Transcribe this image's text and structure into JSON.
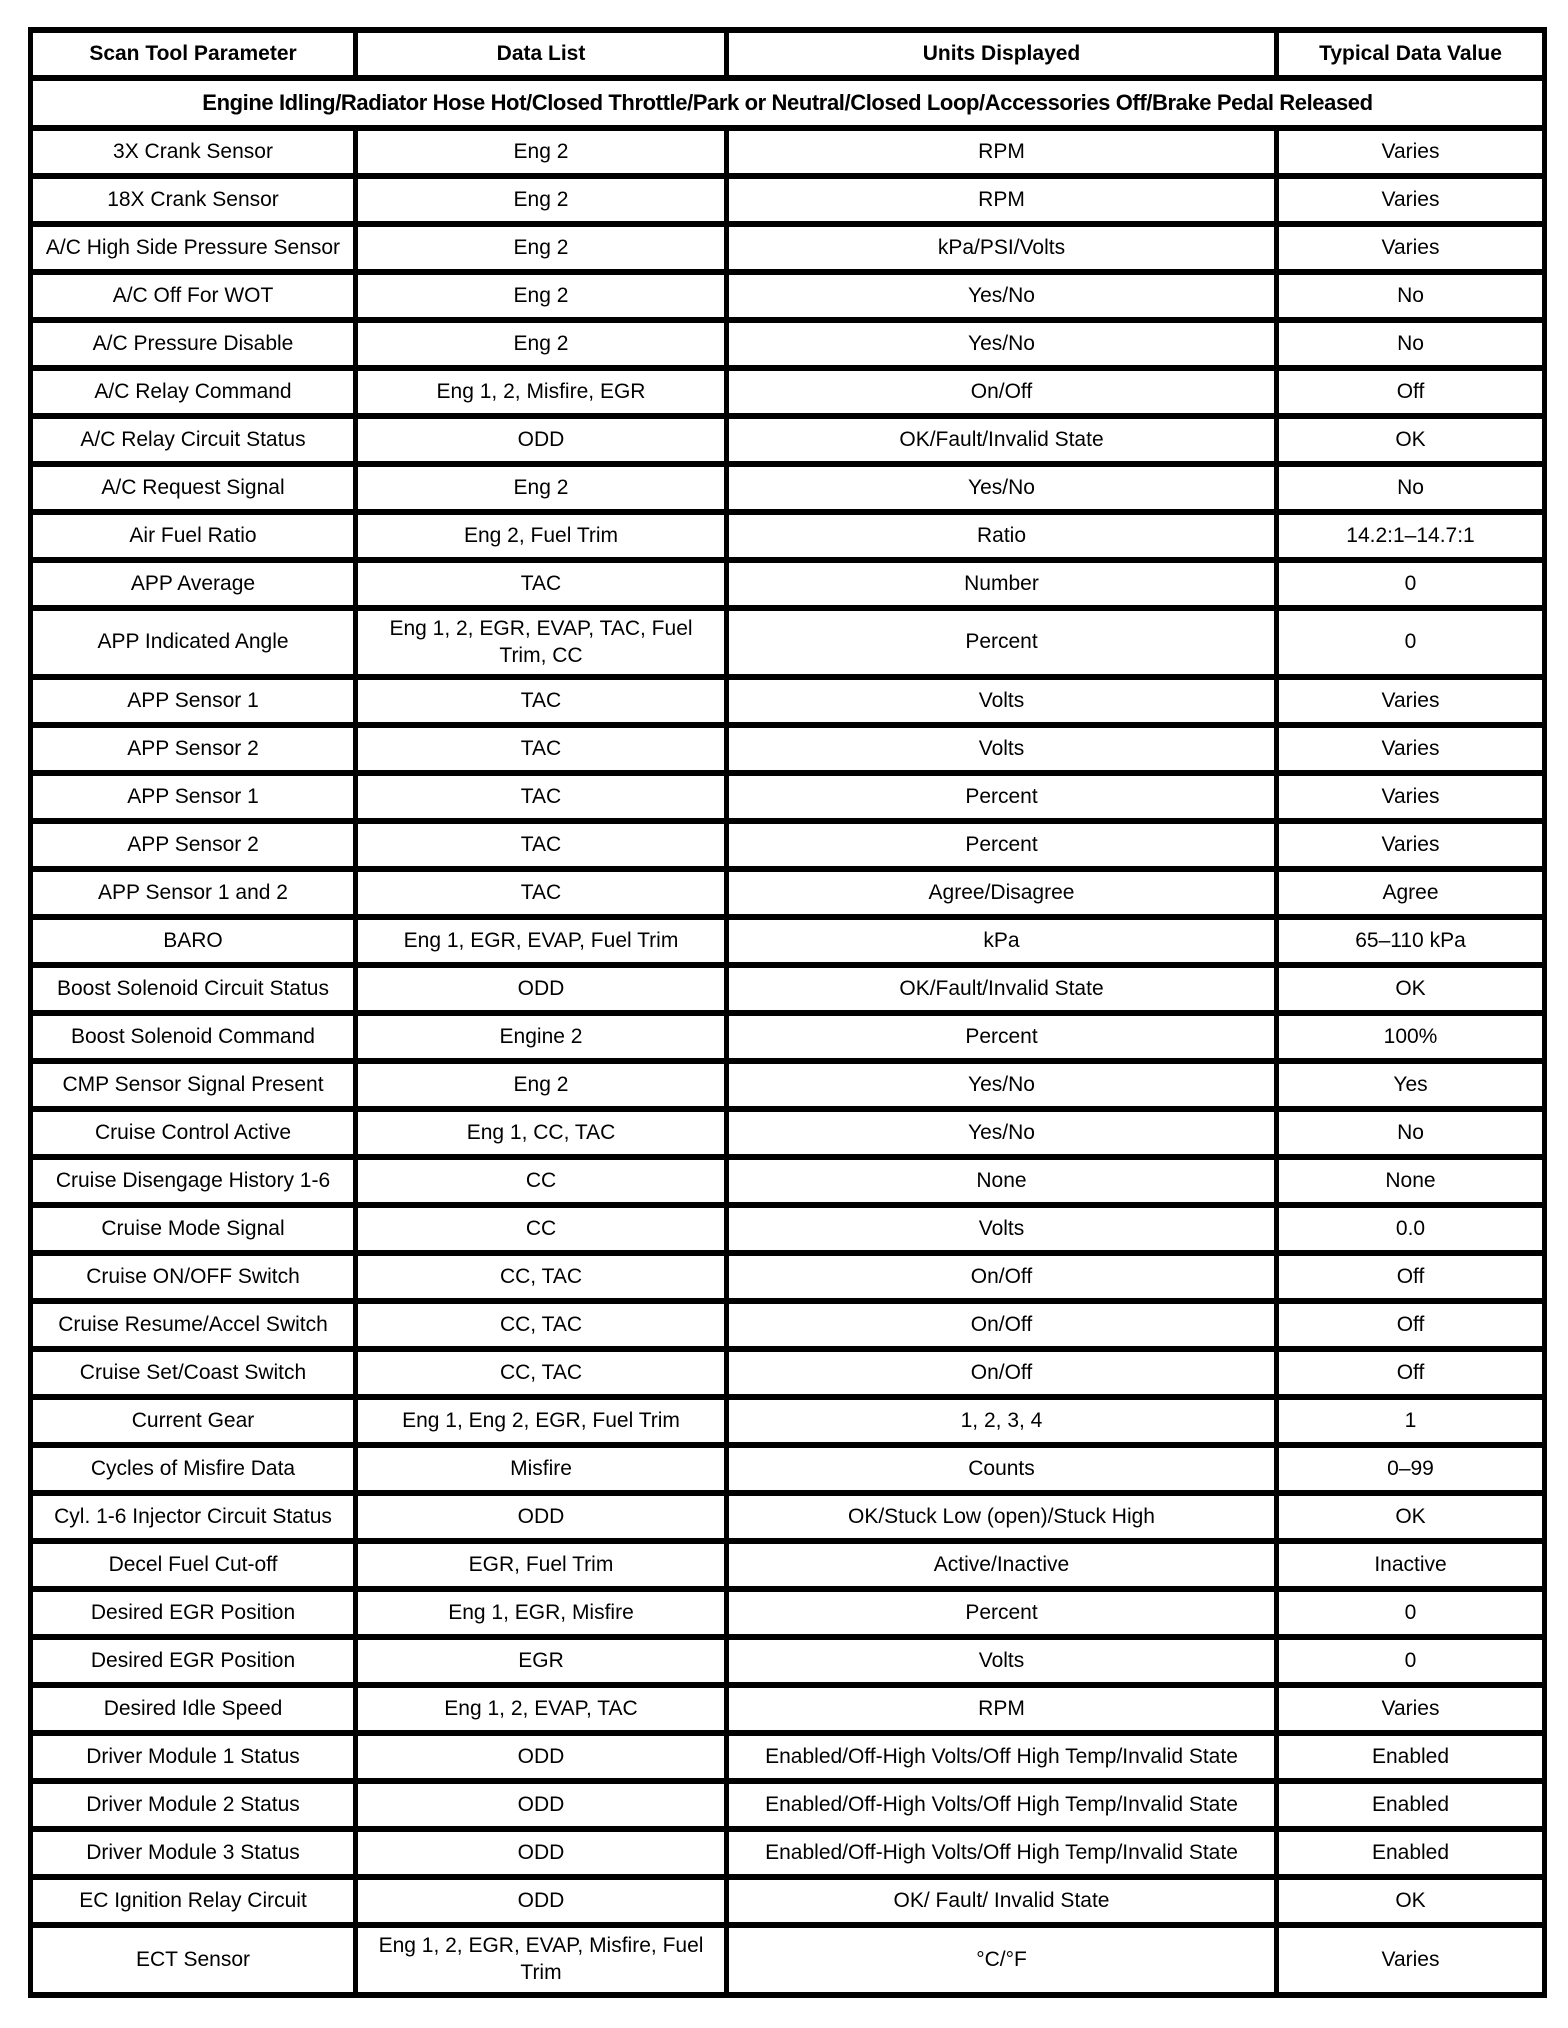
{
  "table": {
    "columns": [
      "Scan Tool Parameter",
      "Data List",
      "Units Displayed",
      "Typical Data Value"
    ],
    "condition": "Engine Idling/Radiator Hose Hot/Closed Throttle/Park or Neutral/Closed Loop/Accessories Off/Brake Pedal Released",
    "rows": [
      {
        "parameter": "3X Crank Sensor",
        "data_list": "Eng 2",
        "units": "RPM",
        "value": "Varies"
      },
      {
        "parameter": "18X Crank Sensor",
        "data_list": "Eng 2",
        "units": "RPM",
        "value": "Varies"
      },
      {
        "parameter": "A/C High Side Pressure Sensor",
        "data_list": "Eng 2",
        "units": "kPa/PSI/Volts",
        "value": "Varies"
      },
      {
        "parameter": "A/C Off For WOT",
        "data_list": "Eng 2",
        "units": "Yes/No",
        "value": "No"
      },
      {
        "parameter": "A/C Pressure Disable",
        "data_list": "Eng 2",
        "units": "Yes/No",
        "value": "No"
      },
      {
        "parameter": "A/C Relay Command",
        "data_list": "Eng 1, 2, Misfire, EGR",
        "units": "On/Off",
        "value": "Off"
      },
      {
        "parameter": "A/C Relay Circuit Status",
        "data_list": "ODD",
        "units": "OK/Fault/Invalid State",
        "value": "OK"
      },
      {
        "parameter": "A/C Request Signal",
        "data_list": "Eng 2",
        "units": "Yes/No",
        "value": "No"
      },
      {
        "parameter": "Air Fuel Ratio",
        "data_list": "Eng 2, Fuel Trim",
        "units": "Ratio",
        "value": "14.2:1–14.7:1"
      },
      {
        "parameter": "APP Average",
        "data_list": "TAC",
        "units": "Number",
        "value": "0"
      },
      {
        "parameter": "APP Indicated Angle",
        "data_list": "Eng 1, 2, EGR, EVAP, TAC, Fuel Trim, CC",
        "units": "Percent",
        "value": "0"
      },
      {
        "parameter": "APP Sensor 1",
        "data_list": "TAC",
        "units": "Volts",
        "value": "Varies"
      },
      {
        "parameter": "APP Sensor 2",
        "data_list": "TAC",
        "units": "Volts",
        "value": "Varies"
      },
      {
        "parameter": "APP Sensor 1",
        "data_list": "TAC",
        "units": "Percent",
        "value": "Varies"
      },
      {
        "parameter": "APP Sensor 2",
        "data_list": "TAC",
        "units": "Percent",
        "value": "Varies"
      },
      {
        "parameter": "APP Sensor 1 and 2",
        "data_list": "TAC",
        "units": "Agree/Disagree",
        "value": "Agree"
      },
      {
        "parameter": "BARO",
        "data_list": "Eng 1, EGR, EVAP, Fuel Trim",
        "units": "kPa",
        "value": "65–110 kPa"
      },
      {
        "parameter": "Boost Solenoid Circuit Status",
        "data_list": "ODD",
        "units": "OK/Fault/Invalid State",
        "value": "OK"
      },
      {
        "parameter": "Boost Solenoid Command",
        "data_list": "Engine 2",
        "units": "Percent",
        "value": "100%"
      },
      {
        "parameter": "CMP Sensor Signal Present",
        "data_list": "Eng 2",
        "units": "Yes/No",
        "value": "Yes"
      },
      {
        "parameter": "Cruise Control Active",
        "data_list": "Eng 1, CC, TAC",
        "units": "Yes/No",
        "value": "No"
      },
      {
        "parameter": "Cruise Disengage History 1-6",
        "data_list": "CC",
        "units": "None",
        "value": "None"
      },
      {
        "parameter": "Cruise Mode Signal",
        "data_list": "CC",
        "units": "Volts",
        "value": "0.0"
      },
      {
        "parameter": "Cruise ON/OFF Switch",
        "data_list": "CC, TAC",
        "units": "On/Off",
        "value": "Off"
      },
      {
        "parameter": "Cruise Resume/Accel Switch",
        "data_list": "CC, TAC",
        "units": "On/Off",
        "value": "Off"
      },
      {
        "parameter": "Cruise Set/Coast Switch",
        "data_list": "CC, TAC",
        "units": "On/Off",
        "value": "Off"
      },
      {
        "parameter": "Current Gear",
        "data_list": "Eng 1, Eng 2, EGR, Fuel Trim",
        "units": "1, 2, 3, 4",
        "value": "1"
      },
      {
        "parameter": "Cycles of Misfire Data",
        "data_list": "Misfire",
        "units": "Counts",
        "value": "0–99"
      },
      {
        "parameter": "Cyl. 1-6 Injector Circuit Status",
        "data_list": "ODD",
        "units": "OK/Stuck Low (open)/Stuck High",
        "value": "OK"
      },
      {
        "parameter": "Decel Fuel Cut-off",
        "data_list": "EGR, Fuel Trim",
        "units": "Active/Inactive",
        "value": "Inactive"
      },
      {
        "parameter": "Desired EGR Position",
        "data_list": "Eng 1, EGR, Misfire",
        "units": "Percent",
        "value": "0"
      },
      {
        "parameter": "Desired EGR Position",
        "data_list": "EGR",
        "units": "Volts",
        "value": "0"
      },
      {
        "parameter": "Desired Idle Speed",
        "data_list": "Eng 1, 2, EVAP, TAC",
        "units": "RPM",
        "value": "Varies"
      },
      {
        "parameter": "Driver Module 1 Status",
        "data_list": "ODD",
        "units": "Enabled/Off-High Volts/Off High Temp/Invalid State",
        "value": "Enabled"
      },
      {
        "parameter": "Driver Module 2 Status",
        "data_list": "ODD",
        "units": "Enabled/Off-High Volts/Off High Temp/Invalid State",
        "value": "Enabled"
      },
      {
        "parameter": "Driver Module 3 Status",
        "data_list": "ODD",
        "units": "Enabled/Off-High Volts/Off High Temp/Invalid State",
        "value": "Enabled"
      },
      {
        "parameter": "EC Ignition Relay Circuit",
        "data_list": "ODD",
        "units": "OK/ Fault/ Invalid State",
        "value": "OK"
      },
      {
        "parameter": "ECT Sensor",
        "data_list": "Eng 1, 2, EGR, EVAP, Misfire, Fuel Trim",
        "units": "°C/°F",
        "value": "Varies"
      }
    ]
  }
}
